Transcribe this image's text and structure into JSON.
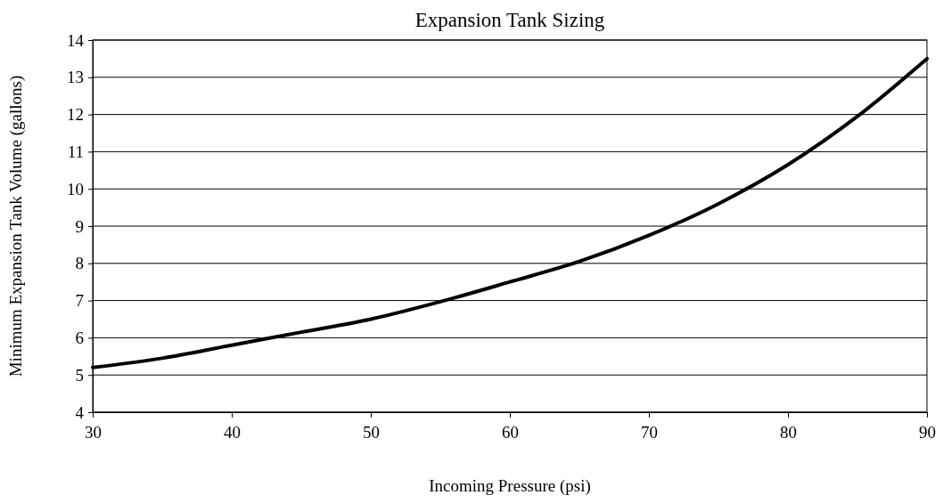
{
  "chart_data": {
    "type": "line",
    "title": "Expansion Tank Sizing",
    "xlabel": "Incoming Pressure (psi)",
    "ylabel": "Minimum Expansion Tank Volume (gallons)",
    "x": [
      30,
      35,
      40,
      45,
      50,
      55,
      60,
      65,
      70,
      75,
      80,
      85,
      90
    ],
    "series": [
      {
        "color": "#000000",
        "values": [
          5.2,
          5.45,
          5.8,
          6.15,
          6.5,
          6.97,
          7.5,
          8.05,
          8.75,
          9.6,
          10.65,
          11.95,
          13.5
        ]
      }
    ],
    "xlim": [
      30,
      90
    ],
    "xticks": [
      30,
      40,
      50,
      60,
      70,
      80,
      90
    ],
    "ylim": [
      4,
      14
    ],
    "yticks": [
      4,
      5,
      6,
      7,
      8,
      9,
      10,
      11,
      12,
      13,
      14
    ],
    "grid": "y",
    "marker": "none",
    "line_style": "solid"
  }
}
